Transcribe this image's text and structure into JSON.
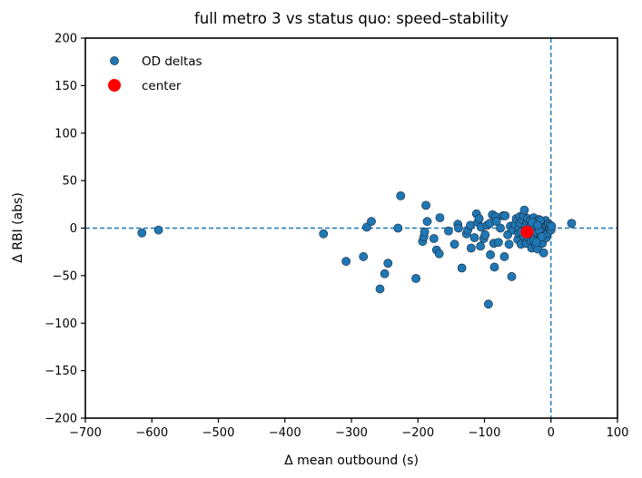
{
  "chart_data": {
    "type": "scatter",
    "title": "full metro 3 vs status quo: speed–stability",
    "xlabel": "Δ mean outbound (s)",
    "ylabel": "Δ RBI (abs)",
    "xlim": [
      -700,
      100
    ],
    "ylim": [
      -200,
      200
    ],
    "xticks": [
      -700,
      -600,
      -500,
      -400,
      -300,
      -200,
      -100,
      0,
      100
    ],
    "yticks": [
      -200,
      -150,
      -100,
      -50,
      0,
      50,
      100,
      150,
      200
    ],
    "grid": false,
    "reference_lines": {
      "x": 0,
      "y": 0,
      "style": "dashed"
    },
    "legend_position": "top-left",
    "colors": {
      "points": "#1f77b4",
      "center": "#ff0000",
      "reference": "#1f77b4"
    },
    "series": [
      {
        "name": "OD deltas",
        "marker": "circle",
        "points": [
          [
            -615,
            -5
          ],
          [
            -590,
            -2
          ],
          [
            -342,
            -6
          ],
          [
            -308,
            -35
          ],
          [
            -282,
            -30
          ],
          [
            -277,
            1
          ],
          [
            -270,
            7
          ],
          [
            -257,
            -64
          ],
          [
            -250,
            -48
          ],
          [
            -245,
            -37
          ],
          [
            -230,
            0
          ],
          [
            -226,
            34
          ],
          [
            -203,
            -53
          ],
          [
            -193,
            -14
          ],
          [
            -191,
            -9
          ],
          [
            -190,
            -4
          ],
          [
            -188,
            24
          ],
          [
            -186,
            7
          ],
          [
            -176,
            -11
          ],
          [
            -172,
            -23
          ],
          [
            -168,
            -27
          ],
          [
            -167,
            11
          ],
          [
            -154,
            -3
          ],
          [
            -145,
            -17
          ],
          [
            -140,
            4
          ],
          [
            -139,
            0
          ],
          [
            -134,
            -42
          ],
          [
            -127,
            -6
          ],
          [
            -125,
            -2
          ],
          [
            -121,
            3
          ],
          [
            -120,
            -21
          ],
          [
            -115,
            -10
          ],
          [
            -112,
            15
          ],
          [
            -110,
            6
          ],
          [
            -108,
            10
          ],
          [
            -106,
            -19
          ],
          [
            -105,
            1
          ],
          [
            -101,
            -11
          ],
          [
            -99,
            -7
          ],
          [
            -96,
            3
          ],
          [
            -94,
            -80
          ],
          [
            -92,
            5
          ],
          [
            -91,
            -28
          ],
          [
            -88,
            14
          ],
          [
            -86,
            -16
          ],
          [
            -85,
            -41
          ],
          [
            -83,
            12
          ],
          [
            -82,
            7
          ],
          [
            -79,
            -15
          ],
          [
            -76,
            0
          ],
          [
            -72,
            13
          ],
          [
            -70,
            -30
          ],
          [
            -69,
            13
          ],
          [
            -65,
            -7
          ],
          [
            -63,
            -17
          ],
          [
            -61,
            2
          ],
          [
            -59,
            -51
          ],
          [
            -57,
            -2
          ],
          [
            -54,
            4
          ],
          [
            -52,
            10
          ],
          [
            -50,
            -12
          ],
          [
            -49,
            -5
          ],
          [
            -48,
            0
          ],
          [
            -47,
            12
          ],
          [
            -46,
            5
          ],
          [
            -45,
            -17
          ],
          [
            -43,
            9
          ],
          [
            -42,
            -8
          ],
          [
            -41,
            13
          ],
          [
            -40,
            19
          ],
          [
            -39,
            -1
          ],
          [
            -38,
            3
          ],
          [
            -37,
            -16
          ],
          [
            -36,
            6
          ],
          [
            -35,
            10
          ],
          [
            -34,
            -10
          ],
          [
            -33,
            -3
          ],
          [
            -32,
            1
          ],
          [
            -31,
            8
          ],
          [
            -30,
            -14
          ],
          [
            -29,
            -21
          ],
          [
            -28,
            -6
          ],
          [
            -27,
            4
          ],
          [
            -26,
            11
          ],
          [
            -25,
            -9
          ],
          [
            -24,
            2
          ],
          [
            -23,
            -18
          ],
          [
            -22,
            7
          ],
          [
            -21,
            -4
          ],
          [
            -20,
            -22
          ],
          [
            -19,
            0
          ],
          [
            -18,
            9
          ],
          [
            -17,
            -12
          ],
          [
            -16,
            3
          ],
          [
            -15,
            -7
          ],
          [
            -14,
            6
          ],
          [
            -13,
            -16
          ],
          [
            -12,
            1
          ],
          [
            -11,
            -26
          ],
          [
            -10,
            5
          ],
          [
            -9,
            -3
          ],
          [
            -8,
            8
          ],
          [
            -7,
            -10
          ],
          [
            -6,
            2
          ],
          [
            -5,
            -5
          ],
          [
            -4,
            4
          ],
          [
            -3,
            -1
          ],
          [
            -2,
            0
          ],
          [
            -1,
            3
          ],
          [
            0,
            -2
          ],
          [
            1,
            2
          ],
          [
            31,
            5
          ],
          [
            -44,
            -4
          ],
          [
            -26,
            -13
          ],
          [
            -18,
            -2
          ],
          [
            -14,
            -9
          ],
          [
            -35,
            -6
          ],
          [
            -30,
            2
          ],
          [
            -22,
            -15
          ],
          [
            -16,
            8
          ],
          [
            -28,
            6
          ],
          [
            -20,
            3
          ]
        ]
      },
      {
        "name": "center",
        "marker": "circle-large",
        "points": [
          [
            -36,
            -4
          ]
        ]
      }
    ]
  }
}
